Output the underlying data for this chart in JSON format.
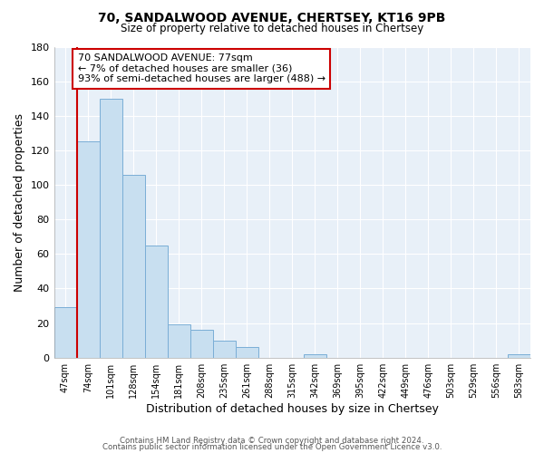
{
  "title1": "70, SANDALWOOD AVENUE, CHERTSEY, KT16 9PB",
  "title2": "Size of property relative to detached houses in Chertsey",
  "xlabel": "Distribution of detached houses by size in Chertsey",
  "ylabel": "Number of detached properties",
  "bar_labels": [
    "47sqm",
    "74sqm",
    "101sqm",
    "128sqm",
    "154sqm",
    "181sqm",
    "208sqm",
    "235sqm",
    "261sqm",
    "288sqm",
    "315sqm",
    "342sqm",
    "369sqm",
    "395sqm",
    "422sqm",
    "449sqm",
    "476sqm",
    "503sqm",
    "529sqm",
    "556sqm",
    "583sqm"
  ],
  "bar_heights": [
    29,
    125,
    150,
    106,
    65,
    19,
    16,
    10,
    6,
    0,
    0,
    2,
    0,
    0,
    0,
    0,
    0,
    0,
    0,
    0,
    2
  ],
  "bar_face_color": "#c8dff0",
  "bar_edge_color": "#7aaed6",
  "highlight_line_color": "#cc0000",
  "annotation_text": "70 SANDALWOOD AVENUE: 77sqm\n← 7% of detached houses are smaller (36)\n93% of semi-detached houses are larger (488) →",
  "annotation_box_color": "#ffffff",
  "annotation_box_edge": "#cc0000",
  "ylim": [
    0,
    180
  ],
  "yticks": [
    0,
    20,
    40,
    60,
    80,
    100,
    120,
    140,
    160,
    180
  ],
  "footer1": "Contains HM Land Registry data © Crown copyright and database right 2024.",
  "footer2": "Contains public sector information licensed under the Open Government Licence v3.0.",
  "background_color": "#ffffff",
  "plot_bg_color": "#e8f0f8",
  "grid_color": "#ffffff"
}
